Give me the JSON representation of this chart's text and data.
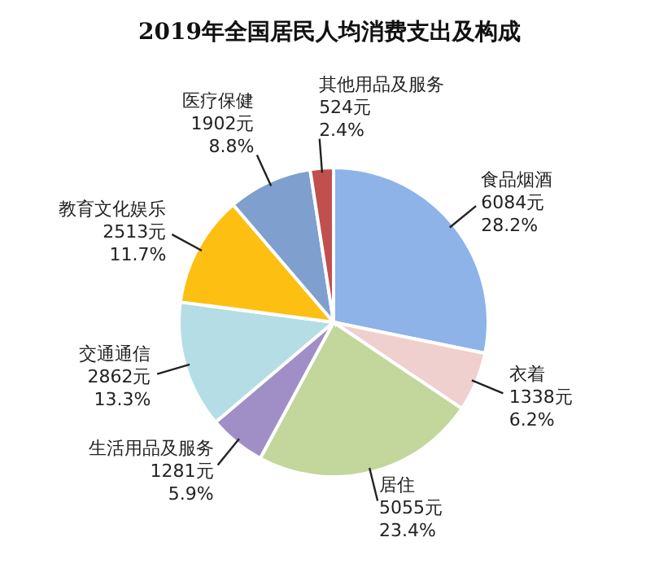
{
  "chart_data": {
    "type": "pie",
    "title": "2019年全国居民人均消费支出及构成",
    "categories": [
      "食品烟酒",
      "衣着",
      "居住",
      "生活用品及服务",
      "交通通信",
      "教育文化娱乐",
      "医疗保健",
      "其他用品及服务"
    ],
    "values": [
      6084,
      1338,
      5055,
      1281,
      2862,
      2513,
      1902,
      524
    ],
    "value_labels": [
      "6084元\n28.2%",
      "1338元\n6.2%",
      "5055元\n23.4%",
      "1281元\n5.9%",
      "2862元\n13.3%",
      "2513元\n11.7%",
      "1902元\n8.8%",
      "524元\n2.4%"
    ],
    "colors": [
      "#8db3e8",
      "#f0cfcf",
      "#c3d69b",
      "#a08fc6",
      "#b5dde6",
      "#fdbf12",
      "#7f9fcf",
      "#c0504d"
    ]
  }
}
